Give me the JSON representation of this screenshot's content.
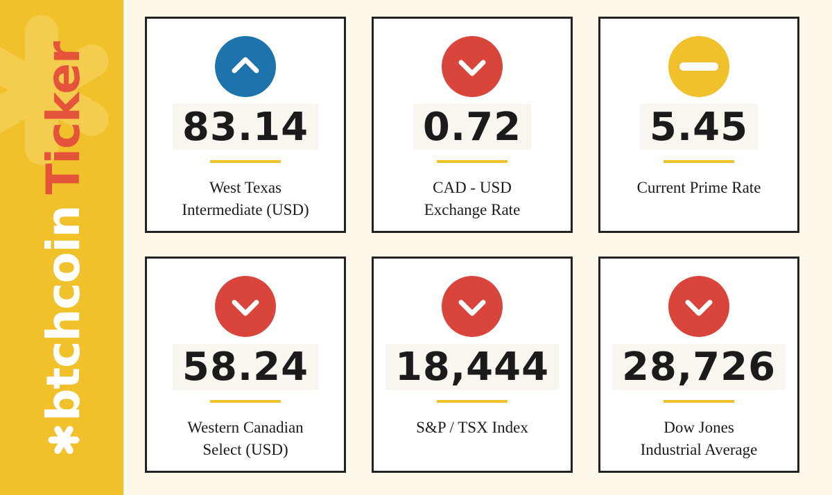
{
  "brand": {
    "word1": "btchcoin",
    "word2": "Ticker"
  },
  "colors": {
    "sidebar": "#f1c12b",
    "up": "#1e73ad",
    "down": "#d9453a",
    "neutral": "#f1c12b",
    "accent": "#e5533a"
  },
  "cards": [
    {
      "value": "83.14",
      "label": "West Texas\nIntermediate (USD)",
      "trend": "up",
      "icon": "chevron-up-icon"
    },
    {
      "value": "0.72",
      "label": "CAD - USD\nExchange Rate",
      "trend": "down",
      "icon": "chevron-down-icon"
    },
    {
      "value": "5.45",
      "label": "Current Prime Rate",
      "trend": "neutral",
      "icon": "minus-icon"
    },
    {
      "value": "58.24",
      "label": "Western Canadian\nSelect (USD)",
      "trend": "down",
      "icon": "chevron-down-icon"
    },
    {
      "value": "18,444",
      "label": "S&P / TSX Index",
      "trend": "down",
      "icon": "chevron-down-icon"
    },
    {
      "value": "28,726",
      "label": "Dow Jones\nIndustrial Average",
      "trend": "down",
      "icon": "chevron-down-icon"
    }
  ]
}
